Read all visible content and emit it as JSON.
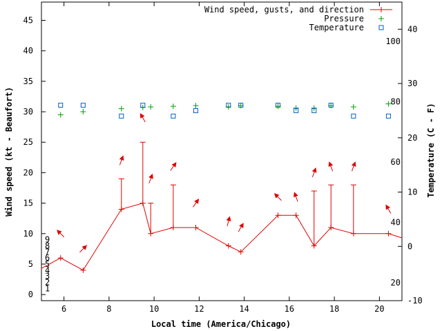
{
  "chart_data": {
    "type": "line",
    "xlabel": "Local time (America/Chicago)",
    "ylabel_left": "Wind speed (kt - Beaufort)",
    "ylabel_right": "Temperature (C - F)",
    "xlim": [
      5,
      21
    ],
    "x_ticks": [
      6,
      8,
      10,
      12,
      14,
      16,
      18,
      20
    ],
    "ylim_left": [
      -1,
      48
    ],
    "y_ticks_left": [
      0,
      5,
      10,
      15,
      20,
      25,
      30,
      35,
      40,
      45
    ],
    "beaufort_labels": [
      {
        "value": 1,
        "label": "1"
      },
      {
        "value": 2,
        "label": "2"
      },
      {
        "value": 3,
        "label": "3"
      },
      {
        "value": 4,
        "label": "4"
      },
      {
        "value": 5,
        "label": "5"
      },
      {
        "value": 6,
        "label": "6"
      },
      {
        "value": 7,
        "label": "7"
      },
      {
        "value": 8,
        "label": "8"
      },
      {
        "value": 9,
        "label": "9"
      }
    ],
    "ylim_right": [
      -10,
      45
    ],
    "y_ticks_right": [
      -10,
      0,
      10,
      20,
      30,
      40
    ],
    "fahrenheit_labels": [
      20,
      40,
      60,
      80,
      100
    ],
    "legend": [
      {
        "label": "Wind speed, gusts, and direction",
        "color": "#e00000",
        "marker": "line-plus"
      },
      {
        "label": "Pressure",
        "color": "#00a000",
        "marker": "plus"
      },
      {
        "label": "Temperature",
        "color": "#0060c0",
        "marker": "square"
      }
    ],
    "series": [
      {
        "name": "Wind speed",
        "color": "#e00000",
        "x": [
          5.0,
          5.85,
          6.85,
          8.55,
          9.5,
          9.85,
          10.85,
          11.85,
          13.3,
          13.85,
          15.5,
          16.3,
          17.1,
          17.85,
          18.85,
          20.4,
          21.0
        ],
        "values": [
          4.3,
          6,
          4,
          14,
          15,
          10,
          11,
          11,
          8,
          7,
          13,
          13,
          8,
          11,
          10,
          10,
          9.3
        ]
      },
      {
        "name": "Gusts",
        "color": "#e00000",
        "points": [
          {
            "x": 8.55,
            "low": 14,
            "high": 19
          },
          {
            "x": 9.5,
            "low": 15,
            "high": 25
          },
          {
            "x": 9.85,
            "low": 10,
            "high": 15
          },
          {
            "x": 10.85,
            "low": 11,
            "high": 18
          },
          {
            "x": 17.1,
            "low": 8,
            "high": 17
          },
          {
            "x": 17.85,
            "low": 11,
            "high": 18
          },
          {
            "x": 18.85,
            "low": 10,
            "high": 18
          }
        ]
      },
      {
        "name": "Wind direction arrows",
        "color": "#e00000",
        "points": [
          {
            "x": 5.85,
            "y": 10,
            "angle": 135
          },
          {
            "x": 6.85,
            "y": 7.5,
            "angle": 225
          },
          {
            "x": 8.55,
            "y": 22,
            "angle": 200
          },
          {
            "x": 9.5,
            "y": 29,
            "angle": 150
          },
          {
            "x": 9.85,
            "y": 19,
            "angle": 200
          },
          {
            "x": 10.85,
            "y": 21,
            "angle": 215
          },
          {
            "x": 11.85,
            "y": 15,
            "angle": 215
          },
          {
            "x": 13.3,
            "y": 12,
            "angle": 195
          },
          {
            "x": 13.85,
            "y": 11,
            "angle": 210
          },
          {
            "x": 15.5,
            "y": 16,
            "angle": 135
          },
          {
            "x": 16.3,
            "y": 16,
            "angle": 160
          },
          {
            "x": 17.1,
            "y": 20,
            "angle": 200
          },
          {
            "x": 17.85,
            "y": 21,
            "angle": 160
          },
          {
            "x": 18.85,
            "y": 21,
            "angle": 200
          },
          {
            "x": 20.4,
            "y": 14,
            "angle": 150
          }
        ]
      },
      {
        "name": "Pressure",
        "color": "#00a000",
        "x": [
          5.85,
          6.85,
          8.55,
          9.5,
          9.85,
          10.85,
          11.85,
          13.3,
          13.85,
          15.5,
          16.3,
          17.1,
          17.85,
          18.85,
          20.4
        ],
        "values": [
          29.5,
          30,
          30.5,
          30.7,
          30.8,
          30.9,
          31,
          30.8,
          31,
          30.9,
          30.6,
          30.6,
          31,
          30.8,
          31.3
        ]
      },
      {
        "name": "Temperature",
        "color": "#0060c0",
        "axis": "right",
        "x": [
          5.85,
          6.85,
          8.55,
          9.5,
          10.85,
          11.85,
          13.3,
          13.85,
          15.5,
          16.3,
          17.1,
          17.85,
          18.85,
          20.4
        ],
        "values": [
          26,
          26,
          24,
          26,
          24,
          25,
          26,
          26,
          26,
          25,
          25,
          26,
          24,
          24
        ]
      }
    ]
  }
}
